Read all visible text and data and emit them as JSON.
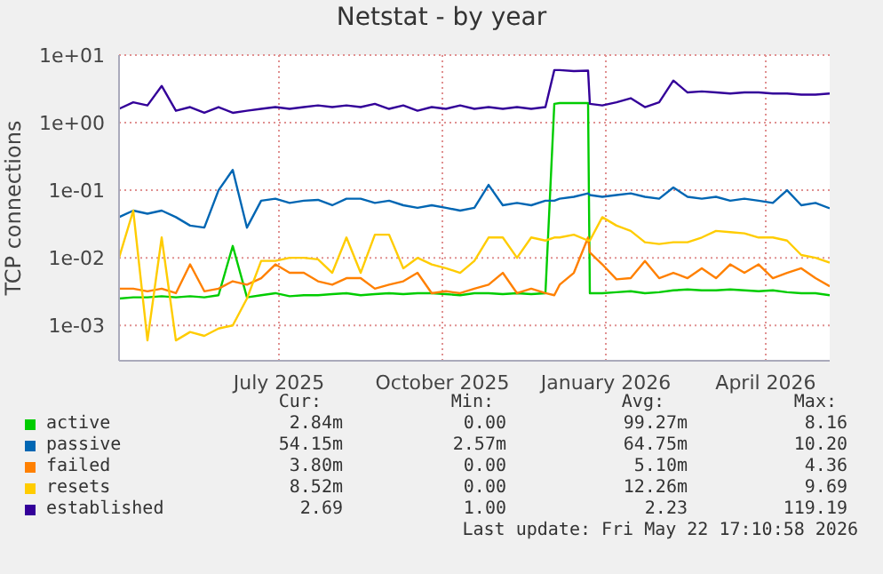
{
  "chart_data": {
    "type": "line",
    "title": "Netstat - by year",
    "ylabel": "TCP connections",
    "x": [
      "2025-04-17",
      "2025-04-25",
      "2025-05-03",
      "2025-05-11",
      "2025-05-19",
      "2025-05-27",
      "2025-06-04",
      "2025-06-12",
      "2025-06-20",
      "2025-06-28",
      "2025-07-06",
      "2025-07-14",
      "2025-07-22",
      "2025-07-30",
      "2025-08-07",
      "2025-08-15",
      "2025-08-23",
      "2025-08-31",
      "2025-09-08",
      "2025-09-16",
      "2025-09-24",
      "2025-10-02",
      "2025-10-10",
      "2025-10-18",
      "2025-10-26",
      "2025-11-03",
      "2025-11-11",
      "2025-11-19",
      "2025-11-27",
      "2025-12-05",
      "2025-12-13",
      "2025-12-18",
      "2025-12-21",
      "2025-12-29",
      "2026-01-06",
      "2026-01-07",
      "2026-01-14",
      "2026-01-22",
      "2026-01-30",
      "2026-02-07",
      "2026-02-15",
      "2026-02-23",
      "2026-03-03",
      "2026-03-11",
      "2026-03-19",
      "2026-03-27",
      "2026-04-04",
      "2026-04-12",
      "2026-04-20",
      "2026-04-28",
      "2026-05-06",
      "2026-05-14",
      "2026-05-22"
    ],
    "series": [
      {
        "name": "active",
        "color": "#00cc00",
        "values": [
          0.0025,
          0.0026,
          0.0026,
          0.0027,
          0.0026,
          0.0027,
          0.0026,
          0.0028,
          0.015,
          0.0026,
          0.0028,
          0.003,
          0.0027,
          0.0028,
          0.0028,
          0.0029,
          0.003,
          0.0028,
          0.0029,
          0.003,
          0.0029,
          0.003,
          0.003,
          0.0029,
          0.0028,
          0.003,
          0.003,
          0.0029,
          0.003,
          0.0029,
          0.003,
          1.9,
          1.95,
          1.95,
          1.95,
          0.003,
          0.003,
          0.0031,
          0.0032,
          0.003,
          0.0031,
          0.0033,
          0.0034,
          0.0033,
          0.0033,
          0.0034,
          0.0033,
          0.0032,
          0.0033,
          0.0031,
          0.003,
          0.003,
          0.0028
        ]
      },
      {
        "name": "passive",
        "color": "#0066b3",
        "values": [
          0.04,
          0.05,
          0.045,
          0.05,
          0.04,
          0.03,
          0.028,
          0.1,
          0.2,
          0.028,
          0.07,
          0.075,
          0.065,
          0.07,
          0.072,
          0.06,
          0.075,
          0.075,
          0.065,
          0.07,
          0.06,
          0.055,
          0.06,
          0.055,
          0.05,
          0.055,
          0.12,
          0.06,
          0.065,
          0.06,
          0.07,
          0.07,
          0.075,
          0.08,
          0.09,
          0.085,
          0.08,
          0.085,
          0.09,
          0.08,
          0.075,
          0.11,
          0.08,
          0.075,
          0.08,
          0.07,
          0.075,
          0.07,
          0.065,
          0.1,
          0.06,
          0.065,
          0.054
        ]
      },
      {
        "name": "failed",
        "color": "#ff8000",
        "values": [
          0.0035,
          0.0035,
          0.0032,
          0.0035,
          0.003,
          0.008,
          0.0032,
          0.0035,
          0.0045,
          0.004,
          0.005,
          0.008,
          0.006,
          0.006,
          0.0045,
          0.004,
          0.005,
          0.005,
          0.0035,
          0.004,
          0.0045,
          0.006,
          0.003,
          0.0032,
          0.003,
          0.0035,
          0.004,
          0.006,
          0.003,
          0.0035,
          0.003,
          0.0028,
          0.004,
          0.006,
          0.02,
          0.012,
          0.008,
          0.0048,
          0.005,
          0.009,
          0.005,
          0.006,
          0.005,
          0.007,
          0.005,
          0.008,
          0.006,
          0.008,
          0.005,
          0.006,
          0.007,
          0.005,
          0.0038
        ]
      },
      {
        "name": "resets",
        "color": "#ffcc00",
        "values": [
          0.01,
          0.05,
          0.0006,
          0.02,
          0.0006,
          0.0008,
          0.0007,
          0.0009,
          0.001,
          0.0025,
          0.009,
          0.009,
          0.01,
          0.01,
          0.0095,
          0.006,
          0.02,
          0.006,
          0.022,
          0.022,
          0.007,
          0.01,
          0.008,
          0.007,
          0.006,
          0.009,
          0.02,
          0.02,
          0.01,
          0.02,
          0.018,
          0.02,
          0.02,
          0.022,
          0.018,
          0.018,
          0.04,
          0.03,
          0.025,
          0.017,
          0.016,
          0.017,
          0.017,
          0.02,
          0.025,
          0.024,
          0.023,
          0.02,
          0.02,
          0.018,
          0.011,
          0.01,
          0.0085
        ]
      },
      {
        "name": "established",
        "color": "#330099",
        "values": [
          1.6,
          2.0,
          1.8,
          3.5,
          1.5,
          1.7,
          1.4,
          1.7,
          1.4,
          1.5,
          1.6,
          1.7,
          1.6,
          1.7,
          1.8,
          1.7,
          1.8,
          1.7,
          1.9,
          1.6,
          1.8,
          1.5,
          1.7,
          1.6,
          1.8,
          1.6,
          1.7,
          1.6,
          1.7,
          1.6,
          1.7,
          6.0,
          6.0,
          5.8,
          5.9,
          1.9,
          1.8,
          2.0,
          2.3,
          1.7,
          2.0,
          4.2,
          2.8,
          2.9,
          2.8,
          2.7,
          2.8,
          2.8,
          2.7,
          2.7,
          2.6,
          2.6,
          2.7
        ]
      }
    ],
    "xlim": [
      "2025-04-17",
      "2026-05-22"
    ],
    "xticks": [
      {
        "value": "2025-07-16",
        "label": "July 2025"
      },
      {
        "value": "2025-10-16",
        "label": "October 2025"
      },
      {
        "value": "2026-01-16",
        "label": "January 2026"
      },
      {
        "value": "2026-04-16",
        "label": "April 2026"
      }
    ],
    "ylim": [
      0.0003,
      10
    ],
    "yticks": [
      {
        "value": 10,
        "label": "1e+01"
      },
      {
        "value": 1,
        "label": "1e+00"
      },
      {
        "value": 0.1,
        "label": "1e-01"
      },
      {
        "value": 0.01,
        "label": "1e-02"
      },
      {
        "value": 0.001,
        "label": "1e-03"
      }
    ],
    "log": "y",
    "grid": true,
    "legend": "bottom",
    "marker": "none",
    "line_style": "solid",
    "annotations": [
      "Cur:",
      "Min:",
      "Avg:",
      "Max:",
      "2.84m",
      "0.00",
      "99.27m",
      "8.16",
      "54.15m",
      "2.57m",
      "64.75m",
      "10.20",
      "3.80m",
      "0.00",
      "5.10m",
      "4.36",
      "8.52m",
      "0.00",
      "12.26m",
      "9.69",
      "2.69",
      "1.00",
      "2.23",
      "119.19",
      "Last update: Fri May 22 17:10:58 2026"
    ]
  }
}
